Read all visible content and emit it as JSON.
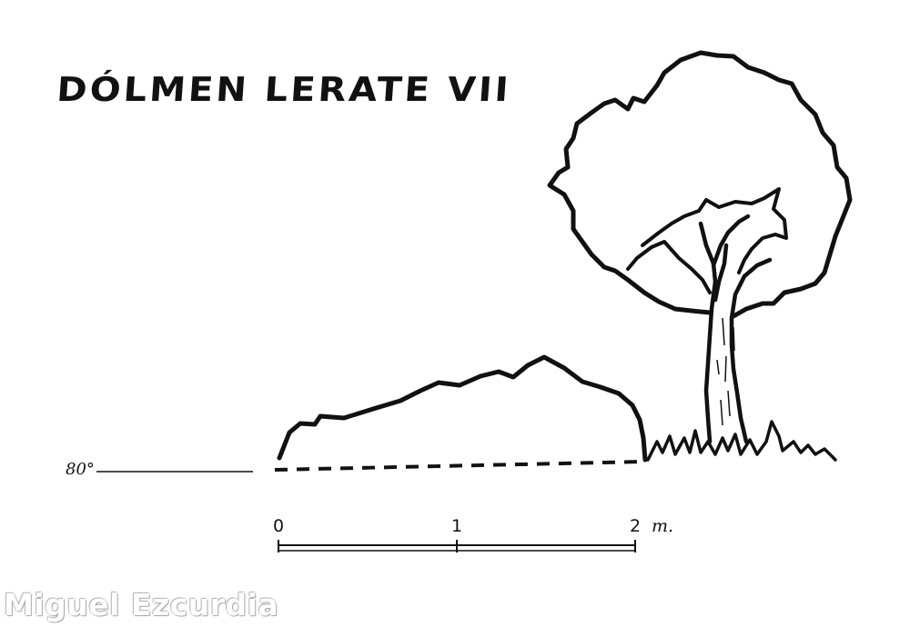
{
  "title": "DÓLMEN LERATE VII",
  "elevation_label": "80°",
  "scale": {
    "ticks": [
      "0",
      "1",
      "2"
    ],
    "unit": "m."
  },
  "credit": "Miguel Ezcurdia"
}
